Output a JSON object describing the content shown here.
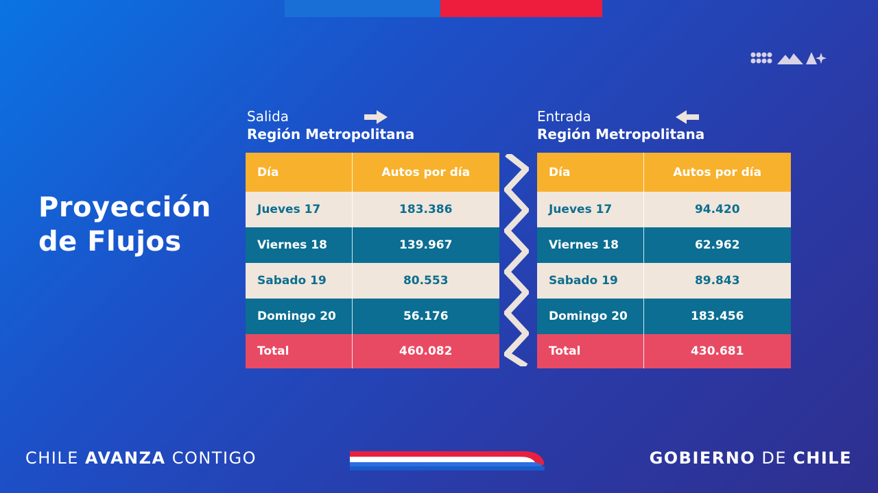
{
  "title": {
    "line1": "Proyección",
    "line2": "de Flujos"
  },
  "left_panel": {
    "heading_line1": "Salida",
    "heading_line2": "Región Metropolitana",
    "columns": [
      "Día",
      "Autos por día"
    ],
    "rows": [
      {
        "day": "Jueves 17",
        "value": "183.386"
      },
      {
        "day": "Viernes 18",
        "value": "139.967"
      },
      {
        "day": "Sabado 19",
        "value": "80.553"
      },
      {
        "day": "Domingo 20",
        "value": "56.176"
      }
    ],
    "total": {
      "label": "Total",
      "value": "460.082"
    }
  },
  "right_panel": {
    "heading_line1": "Entrada",
    "heading_line2": "Región Metropolitana",
    "columns": [
      "Día",
      "Autos por día"
    ],
    "rows": [
      {
        "day": "Jueves 17",
        "value": "94.420"
      },
      {
        "day": "Viernes 18",
        "value": "62.962"
      },
      {
        "day": "Sabado 19",
        "value": "89.843"
      },
      {
        "day": "Domingo 20",
        "value": "183.456"
      }
    ],
    "total": {
      "label": "Total",
      "value": "430.681"
    }
  },
  "footer": {
    "left_pre": "CHILE ",
    "left_bold": "AVANZA",
    "left_post": " CONTIGO",
    "right_bold1": "GOBIERNO",
    "right_mid": " DE ",
    "right_bold2": "CHILE"
  },
  "colors": {
    "header_yellow": "#f8b12c",
    "row_light": "#f0e6dc",
    "row_dark": "#0b6e92",
    "total_red": "#e94a63",
    "flag_blue": "#1a6fd6",
    "flag_red": "#ee1c3d"
  },
  "icons": [
    "arrow-right-icon",
    "arrow-left-icon",
    "brand-logo-icon"
  ]
}
